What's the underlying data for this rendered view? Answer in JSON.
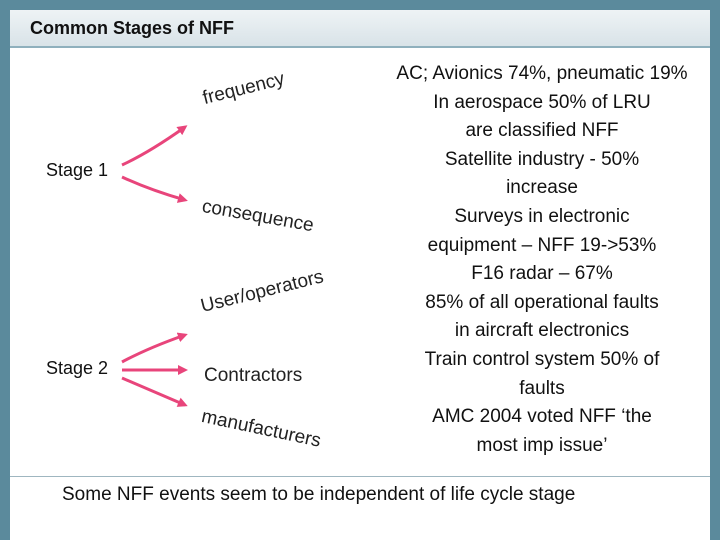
{
  "title": "Common Stages of NFF",
  "stages": {
    "stage1": "Stage 1",
    "stage2": "Stage 2"
  },
  "curved_words": {
    "frequency": "frequency",
    "consequence": "consequence",
    "user_operators": "User/operators",
    "manufacturers": "manufacturers"
  },
  "contractors": "Contractors",
  "facts": [
    "AC; Avionics 74%, pneumatic 19%",
    "In aerospace 50% of LRU",
    "are classified NFF",
    "Satellite industry - 50%",
    "increase",
    "Surveys in electronic",
    "equipment – NFF 19->53%",
    "F16 radar – 67%",
    "85% of all operational faults",
    "in aircraft electronics",
    "Train control system 50% of",
    "faults",
    "AMC 2004 voted NFF ‘the",
    "most imp issue’"
  ],
  "footer": "Some NFF events seem to be independent of life cycle stage",
  "colors": {
    "arrow": "#e8457b",
    "frame": "#5b8a9c"
  }
}
